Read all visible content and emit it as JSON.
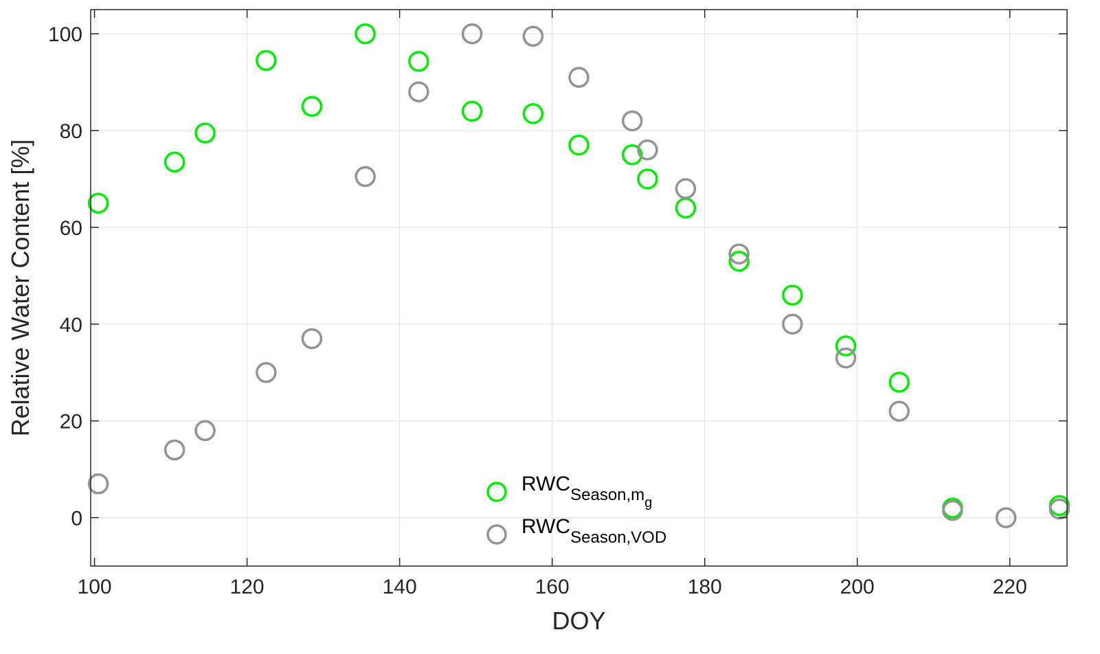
{
  "chart_data": {
    "type": "scatter",
    "title": "",
    "xlabel": "DOY",
    "ylabel": "Relative Water Content [%]",
    "xlim": [
      99.5,
      227.5
    ],
    "ylim": [
      -10,
      105
    ],
    "xticks": [
      100,
      120,
      140,
      160,
      180,
      200,
      220
    ],
    "yticks": [
      0,
      20,
      40,
      60,
      80,
      100
    ],
    "grid": true,
    "legend_position": "bottom-center",
    "series": [
      {
        "label_main": "RWC",
        "label_sub": "Season,m",
        "label_subsub": "g",
        "color": "#00ee00",
        "marker": "open-circle",
        "points": [
          [
            100.5,
            65
          ],
          [
            110.5,
            73.5
          ],
          [
            114.5,
            79.5
          ],
          [
            122.5,
            94.5
          ],
          [
            128.5,
            85
          ],
          [
            135.5,
            100
          ],
          [
            142.5,
            94.3
          ],
          [
            149.5,
            84
          ],
          [
            157.5,
            83.5
          ],
          [
            163.5,
            77
          ],
          [
            170.5,
            75
          ],
          [
            172.5,
            70
          ],
          [
            177.5,
            64
          ],
          [
            184.5,
            53
          ],
          [
            191.5,
            46
          ],
          [
            198.5,
            35.5
          ],
          [
            205.5,
            28
          ],
          [
            212.5,
            2
          ],
          [
            226.5,
            2.5
          ]
        ]
      },
      {
        "label_main": "RWC",
        "label_sub": "Season,VOD",
        "label_subsub": "",
        "color": "#939393",
        "marker": "open-circle",
        "points": [
          [
            100.5,
            7
          ],
          [
            110.5,
            14
          ],
          [
            114.5,
            18
          ],
          [
            122.5,
            30
          ],
          [
            128.5,
            37
          ],
          [
            135.5,
            70.5
          ],
          [
            142.5,
            88
          ],
          [
            149.5,
            100
          ],
          [
            157.5,
            99.5
          ],
          [
            163.5,
            91
          ],
          [
            170.5,
            82
          ],
          [
            172.5,
            76
          ],
          [
            177.5,
            68
          ],
          [
            184.5,
            54.5
          ],
          [
            191.5,
            40
          ],
          [
            198.5,
            33
          ],
          [
            205.5,
            22
          ],
          [
            212.5,
            1.5
          ],
          [
            219.5,
            0
          ],
          [
            226.5,
            1.8
          ]
        ]
      }
    ]
  }
}
